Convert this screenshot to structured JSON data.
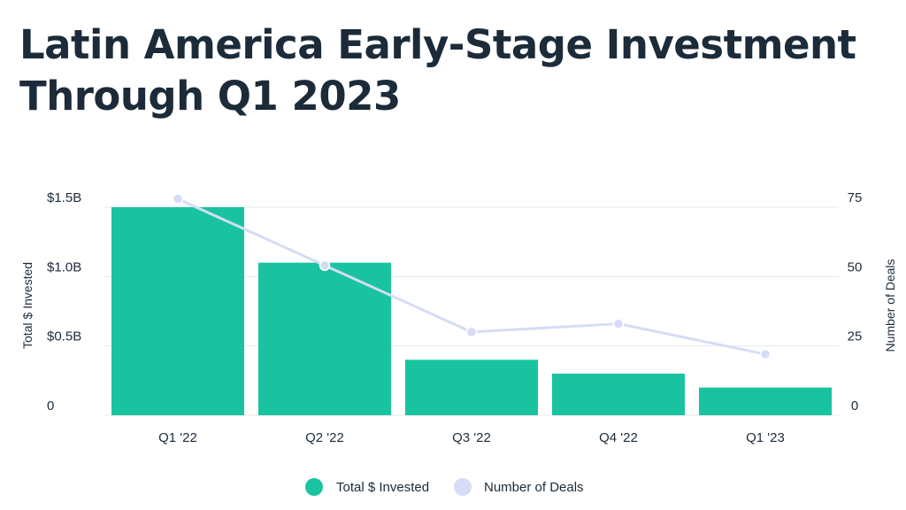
{
  "chart_data": {
    "type": "bar",
    "title": "Latin America Early-Stage Investment Through Q1 2023",
    "categories": [
      "Q1 '22",
      "Q2 '22",
      "Q3 '22",
      "Q4 '22",
      "Q1 '23"
    ],
    "series": [
      {
        "name": "Total $ Invested",
        "type": "bar",
        "axis": "left",
        "unit": "USD billions",
        "color": "#19c3a0",
        "values": [
          1.5,
          1.1,
          0.4,
          0.3,
          0.2
        ]
      },
      {
        "name": "Number of Deals",
        "type": "line",
        "axis": "right",
        "color": "#d6dcf5",
        "values": [
          78,
          54,
          30,
          33,
          22
        ]
      }
    ],
    "ylabel": "Total $ Invested",
    "y2label": "Number of Deals",
    "ylim": [
      0,
      1.5
    ],
    "y2lim": [
      0,
      75
    ],
    "yticks": [
      {
        "value": 0,
        "label": "0"
      },
      {
        "value": 0.5,
        "label": "$0.5B"
      },
      {
        "value": 1.0,
        "label": "$1.0B"
      },
      {
        "value": 1.5,
        "label": "$1.5B"
      }
    ],
    "y2ticks": [
      {
        "value": 0,
        "label": "0"
      },
      {
        "value": 25,
        "label": "25"
      },
      {
        "value": 50,
        "label": "50"
      },
      {
        "value": 75,
        "label": "75"
      }
    ],
    "grid": true,
    "legend": "bottom-center"
  }
}
